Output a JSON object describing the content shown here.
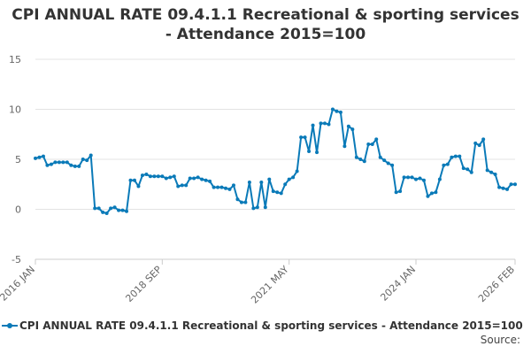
{
  "chart_data": {
    "type": "line",
    "title_line1": "CPI ANNUAL RATE 09.4.1.1 Recreational & sporting services",
    "title_line2": "- Attendance 2015=100",
    "xlabel": "",
    "ylabel": "",
    "ylim": [
      -5,
      15
    ],
    "yticks": [
      "15",
      "10",
      "5",
      "0",
      "-5"
    ],
    "ytick_values": [
      15,
      10,
      5,
      0,
      -5
    ],
    "xticks": [
      {
        "label": "2016 JAN",
        "index": 0
      },
      {
        "label": "2018 SEP",
        "index": 32
      },
      {
        "label": "2021 MAY",
        "index": 64
      },
      {
        "label": "2024 JAN",
        "index": 96
      },
      {
        "label": "2026 FEB",
        "index": 121
      }
    ],
    "color": "#0a7ab8",
    "series": [
      {
        "name": "CPI ANNUAL RATE 09.4.1.1 Recreational & sporting services - Attendance 2015=100",
        "values": [
          5.1,
          5.2,
          5.3,
          4.4,
          4.5,
          4.7,
          4.7,
          4.7,
          4.7,
          4.4,
          4.3,
          4.3,
          5.0,
          4.9,
          5.4,
          0.1,
          0.1,
          -0.3,
          -0.4,
          0.1,
          0.2,
          -0.1,
          -0.1,
          -0.2,
          2.9,
          2.9,
          2.3,
          3.4,
          3.5,
          3.3,
          3.3,
          3.3,
          3.3,
          3.1,
          3.2,
          3.3,
          2.3,
          2.4,
          2.4,
          3.1,
          3.1,
          3.2,
          3.0,
          2.9,
          2.8,
          2.2,
          2.2,
          2.2,
          2.1,
          2.0,
          2.4,
          1.0,
          0.7,
          0.7,
          2.7,
          0.1,
          0.2,
          2.7,
          0.2,
          3.0,
          1.8,
          1.7,
          1.6,
          2.5,
          3.0,
          3.2,
          3.8,
          7.2,
          7.2,
          5.8,
          8.4,
          5.7,
          8.6,
          8.6,
          8.5,
          10.0,
          9.8,
          9.7,
          6.3,
          8.3,
          8.0,
          5.2,
          5.0,
          4.8,
          6.5,
          6.5,
          7.0,
          5.2,
          4.9,
          4.6,
          4.4,
          1.7,
          1.8,
          3.2,
          3.2,
          3.2,
          3.0,
          3.1,
          2.9,
          1.3,
          1.6,
          1.7,
          3.0,
          4.4,
          4.5,
          5.2,
          5.3,
          5.3,
          4.1,
          4.0,
          3.7,
          6.6,
          6.4,
          7.0,
          3.9,
          3.7,
          3.5,
          2.2,
          2.1,
          2.0,
          2.5,
          2.5
        ]
      }
    ],
    "legend": "CPI ANNUAL RATE 09.4.1.1 Recreational & sporting services - Attendance 2015=100",
    "legend_position": "bottom",
    "source_label": "Source:"
  }
}
